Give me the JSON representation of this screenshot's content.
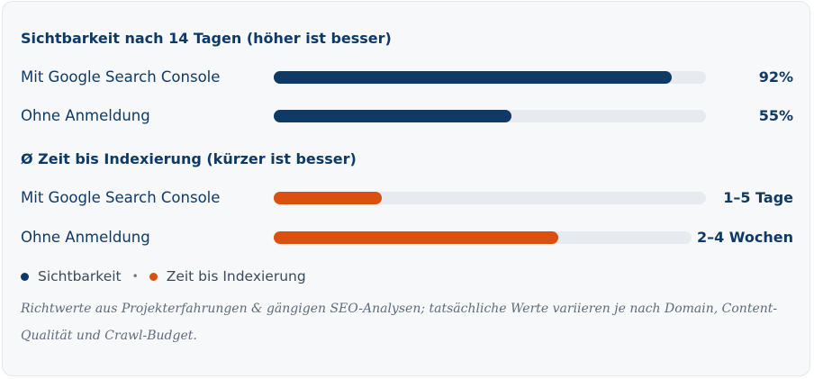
{
  "chart_data": [
    {
      "type": "bar",
      "orientation": "horizontal",
      "title": "Sichtbarkeit nach 14 Tagen (höher ist besser)",
      "categories": [
        "Mit Google Search Console",
        "Ohne Anmeldung"
      ],
      "values": [
        92,
        55
      ],
      "value_labels": [
        "92%",
        "55%"
      ],
      "unit": "%",
      "xlim": [
        0,
        100
      ],
      "series_color": "#0f3a66",
      "grid": false
    },
    {
      "type": "bar",
      "orientation": "horizontal",
      "title": "Ø Zeit bis Indexierung (kürzer ist besser)",
      "categories": [
        "Mit Google Search Console",
        "Ohne Anmeldung"
      ],
      "values": [
        25,
        68
      ],
      "value_labels": [
        "1–5 Tage",
        "2–4 Wochen"
      ],
      "xlim": [
        0,
        100
      ],
      "series_color": "#d9500f",
      "grid": false
    }
  ],
  "legend": {
    "placement": "bottom-left",
    "items": [
      {
        "label": "Sichtbarkeit",
        "color": "#0f3a66"
      },
      {
        "label": "Zeit bis Indexierung",
        "color": "#d9500f"
      }
    ],
    "separator": "•"
  },
  "note": "Richtwerte aus Projekterfahrungen & gängigen SEO-Analysen; tatsächliche Werte variieren je nach Domain, Content-Qualität und Crawl-Budget.",
  "colors": {
    "track": "#e7eaef",
    "text": "#103a64",
    "card_bg": "#f7f8fa"
  }
}
